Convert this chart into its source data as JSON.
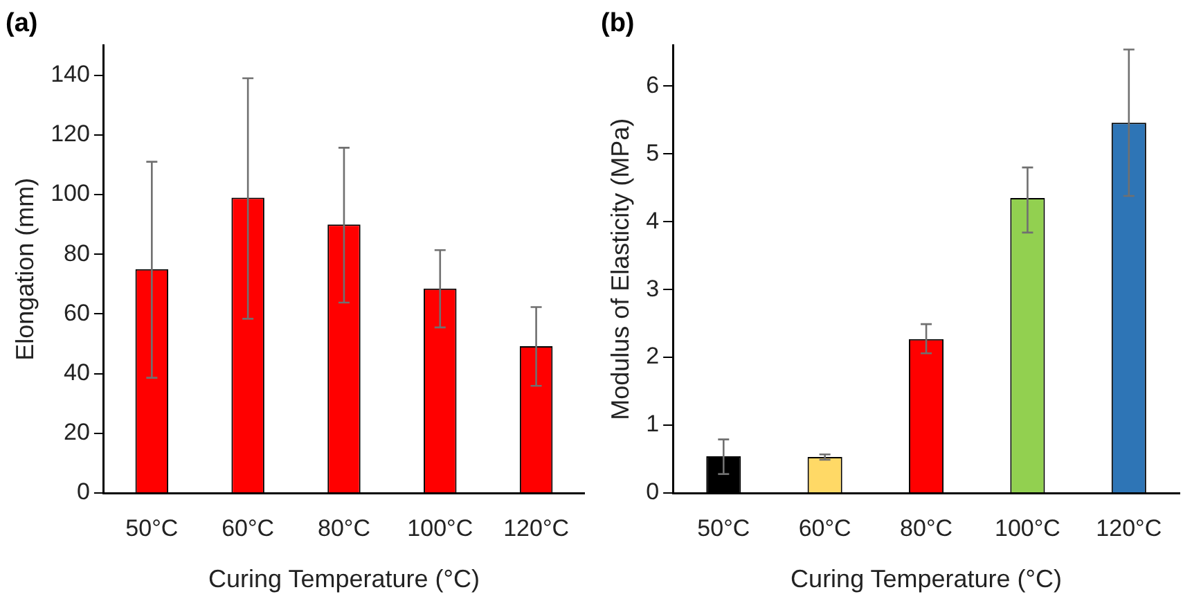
{
  "chart_data": [
    {
      "type": "bar",
      "title": "(a)",
      "xlabel": "Curing Temperature (°C)",
      "ylabel": "Elongation (mm)",
      "categories": [
        "50°C",
        "60°C",
        "80°C",
        "100°C",
        "120°C"
      ],
      "values": [
        75,
        99,
        90,
        68.5,
        49.2
      ],
      "errors": [
        [
          38.6,
          111
        ],
        [
          58.4,
          139
        ],
        [
          63.8,
          115.7
        ],
        [
          55.5,
          81.4
        ],
        [
          35.9,
          62.3
        ]
      ],
      "color": "#ff0000",
      "ylim": [
        0,
        150
      ],
      "yticks": [
        0,
        20,
        40,
        60,
        80,
        100,
        120,
        140
      ],
      "grid": false,
      "legend": false
    },
    {
      "type": "bar",
      "title": "(b)",
      "xlabel": "Curing Temperature (°C)",
      "ylabel": "Modulus of Elasticity (MPa)",
      "categories": [
        "50°C",
        "60°C",
        "80°C",
        "100°C",
        "120°C"
      ],
      "values": [
        0.54,
        0.53,
        2.27,
        4.35,
        5.46
      ],
      "errors": [
        [
          0.28,
          0.79
        ],
        [
          0.49,
          0.57
        ],
        [
          2.06,
          2.49
        ],
        [
          3.84,
          4.8
        ],
        [
          4.38,
          6.54
        ]
      ],
      "colors": [
        "#000000",
        "#ffd966",
        "#ff0000",
        "#92d050",
        "#2e75b6"
      ],
      "ylim": [
        0,
        6.6
      ],
      "yticks": [
        0,
        1,
        2,
        3,
        4,
        5,
        6
      ],
      "grid": false,
      "legend": false
    }
  ]
}
